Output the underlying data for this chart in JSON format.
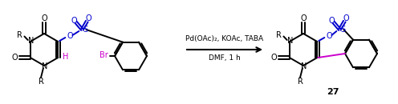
{
  "bg_color": "#ffffff",
  "black": "#000000",
  "blue": "#0000cc",
  "magenta": "#cc00cc",
  "condition_line1": "Pd(OAc)₂, KOAc, TABA",
  "condition_line2": "DMF, 1 h",
  "label_27": "27",
  "figsize": [
    4.96,
    1.3
  ],
  "dpi": 100
}
